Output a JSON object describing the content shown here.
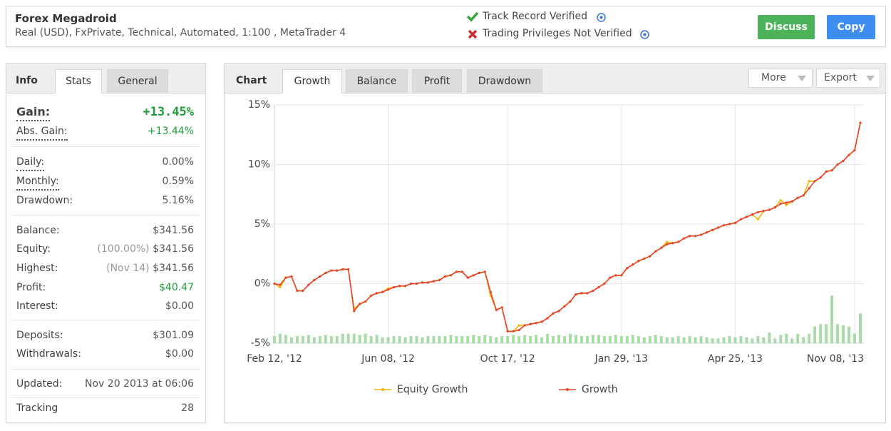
{
  "header": {
    "title": "Forex Megadroid",
    "subtitle": "Real (USD), FxPrivate, Technical, Automated, 1:100 , MetaTrader 4",
    "verified": "Track Record Verified",
    "not_verified": "Trading Privileges Not Verified",
    "buttons": [
      "Discuss",
      "Copy"
    ]
  },
  "info": {
    "tabs": [
      "Info",
      "Stats",
      "General"
    ],
    "sections": [
      [
        {
          "label": "Gain:",
          "value": "+13.45%"
        },
        {
          "label": "Abs. Gain:",
          "value": "+13.44%"
        }
      ],
      [
        {
          "label": "Daily:",
          "value": "0.00%"
        },
        {
          "label": "Monthly:",
          "value": "0.59%"
        },
        {
          "label": "Drawdown:",
          "value": "5.16%"
        }
      ],
      [
        {
          "label": "Balance:",
          "value": "$341.56"
        },
        {
          "label": "Equity:",
          "note": "(100.00%)",
          "value": "$341.56"
        },
        {
          "label": "Highest:",
          "note": "(Nov 14)",
          "value": "$341.56"
        },
        {
          "label": "Profit:",
          "value": "$40.47"
        },
        {
          "label": "Interest:",
          "value": "$0.00"
        }
      ],
      [
        {
          "label": "Deposits:",
          "value": "$301.09"
        },
        {
          "label": "Withdrawals:",
          "value": "$0.00"
        }
      ],
      [
        {
          "label": "Updated:",
          "value": "Nov 20 2013 at 06:06"
        }
      ],
      [
        {
          "label": "Tracking",
          "value": "28"
        }
      ]
    ]
  },
  "chart_panel": {
    "title": "Chart",
    "tabs": [
      "Growth",
      "Balance",
      "Profit",
      "Drawdown"
    ],
    "menus": [
      "More",
      "Export"
    ]
  },
  "chart_data": {
    "type": "line",
    "categories": [
      "Feb 12, '12",
      null,
      null,
      null,
      null,
      null,
      null,
      null,
      null,
      null,
      null,
      null,
      null,
      null,
      null,
      null,
      null,
      null,
      null,
      null,
      "Jun 08, '12",
      null,
      null,
      null,
      null,
      null,
      null,
      null,
      null,
      null,
      null,
      null,
      null,
      null,
      null,
      null,
      null,
      null,
      null,
      null,
      null,
      "Oct 17, '12",
      null,
      null,
      null,
      null,
      null,
      null,
      null,
      null,
      null,
      null,
      null,
      null,
      null,
      null,
      null,
      null,
      null,
      null,
      null,
      "Jan 29, '13",
      null,
      null,
      null,
      null,
      null,
      null,
      null,
      null,
      null,
      null,
      null,
      null,
      null,
      null,
      null,
      null,
      null,
      null,
      null,
      "Apr 25, '13",
      null,
      null,
      null,
      null,
      null,
      null,
      null,
      null,
      null,
      null,
      null,
      null,
      null,
      null,
      null,
      null,
      null,
      null,
      null,
      null,
      "Nov 08, '13",
      null
    ],
    "series": [
      {
        "name": "Equity Growth",
        "color": "#f6b400",
        "values": [
          0.0,
          -0.3,
          0.5,
          0.6,
          -0.6,
          -0.6,
          -0.1,
          0.3,
          0.6,
          0.9,
          1.1,
          1.1,
          1.2,
          1.2,
          -2.1,
          -1.7,
          -1.5,
          -1.0,
          -0.8,
          -0.7,
          -0.4,
          -0.3,
          -0.2,
          -0.2,
          0.0,
          0.0,
          0.1,
          0.1,
          0.2,
          0.3,
          0.6,
          0.7,
          1.0,
          1.0,
          0.5,
          0.7,
          0.9,
          1.0,
          -1.0,
          -2.2,
          -2.0,
          -4.0,
          -4.0,
          -3.5,
          -3.5,
          -3.4,
          -3.3,
          -3.2,
          -2.9,
          -2.5,
          -2.3,
          -1.9,
          -1.5,
          -0.9,
          -0.8,
          -0.8,
          -0.6,
          -0.3,
          0.0,
          0.5,
          0.7,
          0.7,
          1.3,
          1.6,
          1.9,
          2.1,
          2.3,
          2.7,
          3.0,
          3.5,
          3.4,
          3.5,
          3.8,
          4.0,
          4.0,
          4.1,
          4.3,
          4.5,
          4.7,
          4.9,
          5.0,
          5.1,
          5.4,
          5.6,
          5.8,
          5.4,
          6.1,
          6.2,
          6.4,
          7.0,
          6.6,
          6.9,
          7.2,
          7.4,
          8.6,
          8.6,
          8.9,
          9.4,
          9.5,
          10.0,
          10.3,
          10.8,
          11.2,
          13.5
        ]
      },
      {
        "name": "Growth",
        "color": "#e8432a",
        "values": [
          0.0,
          -0.1,
          0.5,
          0.6,
          -0.6,
          -0.6,
          -0.1,
          0.3,
          0.6,
          0.9,
          1.1,
          1.1,
          1.2,
          1.2,
          -2.3,
          -1.7,
          -1.5,
          -1.0,
          -0.8,
          -0.7,
          -0.5,
          -0.3,
          -0.2,
          -0.2,
          0.0,
          0.0,
          0.1,
          0.1,
          0.2,
          0.3,
          0.6,
          0.7,
          1.0,
          1.0,
          0.5,
          0.7,
          0.9,
          1.0,
          -0.7,
          -2.2,
          -2.0,
          -4.0,
          -4.0,
          -3.9,
          -3.5,
          -3.4,
          -3.3,
          -3.2,
          -2.9,
          -2.5,
          -2.3,
          -1.9,
          -1.5,
          -0.9,
          -0.8,
          -0.8,
          -0.6,
          -0.3,
          0.0,
          0.5,
          0.7,
          0.7,
          1.3,
          1.6,
          1.9,
          2.1,
          2.3,
          2.7,
          3.0,
          3.3,
          3.4,
          3.5,
          3.8,
          4.0,
          4.0,
          4.1,
          4.3,
          4.5,
          4.7,
          4.9,
          5.0,
          5.1,
          5.4,
          5.6,
          5.8,
          6.0,
          6.1,
          6.2,
          6.4,
          6.7,
          6.8,
          6.9,
          7.2,
          7.4,
          8.0,
          8.6,
          8.9,
          9.4,
          9.5,
          10.0,
          10.3,
          10.8,
          11.2,
          13.5
        ]
      },
      {
        "type": "bar",
        "color": "#a8dba8",
        "values": [
          -4.4,
          -4.2,
          -4.3,
          -4.5,
          -4.4,
          -4.4,
          -4.3,
          -4.5,
          -4.4,
          -4.3,
          -4.4,
          -4.4,
          -4.2,
          -4.2,
          -4.2,
          -4.3,
          -4.2,
          -4.4,
          -4.3,
          -4.5,
          -4.5,
          -4.4,
          -4.4,
          -4.5,
          -4.4,
          -4.4,
          -4.5,
          -4.4,
          -4.4,
          -4.4,
          -4.4,
          -4.3,
          -4.4,
          -4.4,
          -4.4,
          -4.3,
          -4.4,
          -4.3,
          -4.4,
          -4.5,
          -4.4,
          -4.4,
          -4.3,
          -4.4,
          -4.3,
          -4.4,
          -4.3,
          -4.5,
          -4.2,
          -4.4,
          -4.3,
          -4.4,
          -4.2,
          -4.3,
          -4.4,
          -4.4,
          -4.3,
          -4.3,
          -4.4,
          -4.4,
          -4.3,
          -4.4,
          -4.4,
          -4.3,
          -4.4,
          -4.5,
          -4.4,
          -4.3,
          -4.4,
          -4.5,
          -4.5,
          -4.4,
          -4.5,
          -4.4,
          -4.5,
          -4.4,
          -4.5,
          -4.6,
          -4.6,
          -4.5,
          -4.4,
          -4.5,
          -4.4,
          -4.5,
          -4.6,
          -4.4,
          -4.5,
          -4.1,
          -4.6,
          -4.3,
          -4.2,
          -4.6,
          -4.2,
          -4.5,
          -4.2,
          -3.6,
          -3.4,
          -3.4,
          -1.0,
          -3.4,
          -3.5,
          -3.6,
          -4.2,
          -2.5
        ]
      }
    ],
    "ylim": [
      -5,
      15
    ],
    "yticks": [
      {
        "value": -5,
        "label": "-5%"
      },
      {
        "value": 0,
        "label": "0%"
      },
      {
        "value": 5,
        "label": "5%"
      },
      {
        "value": 10,
        "label": "10%"
      },
      {
        "value": 15,
        "label": "15%"
      }
    ],
    "grid": true,
    "legend": "bottom"
  }
}
